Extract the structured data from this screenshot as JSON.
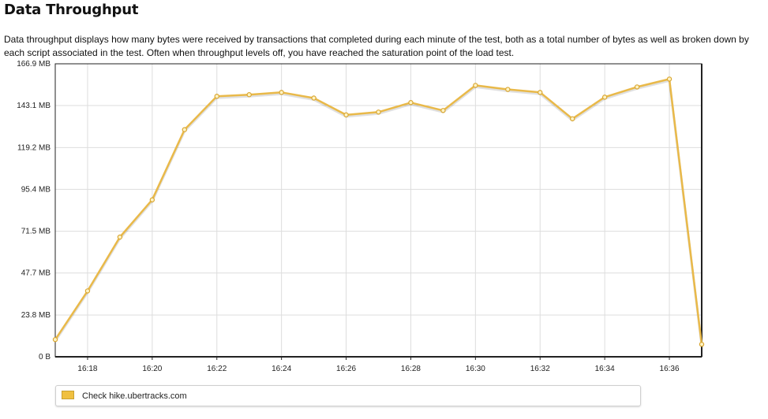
{
  "page": {
    "title": "Data Throughput",
    "description": "Data throughput displays how many bytes were received by transactions that completed during each minute of the test, both as a total number of bytes as well as broken down by each script associated in the test. Often when throughput levels off, you have reached the saturation point of the load test."
  },
  "colors": {
    "series_line": "#e9b949",
    "series_point_fill": "#fff3c4",
    "grid": "#dddddd",
    "axis": "#222222"
  },
  "chart_data": {
    "type": "line",
    "title": "",
    "xlabel": "",
    "ylabel": "",
    "x_unit": "time (HH:MM)",
    "xlim": [
      "16:17",
      "16:37"
    ],
    "ylim": [
      0,
      166.9
    ],
    "y_ticks": [
      0,
      23.8,
      47.7,
      71.5,
      95.4,
      119.2,
      143.1,
      166.9
    ],
    "y_tick_labels": [
      "0 B",
      "23.8 MB",
      "47.7 MB",
      "71.5 MB",
      "95.4 MB",
      "119.2 MB",
      "143.1 MB",
      "166.9 MB"
    ],
    "x_ticks": [
      "16:18",
      "16:20",
      "16:22",
      "16:24",
      "16:26",
      "16:28",
      "16:30",
      "16:32",
      "16:34",
      "16:36"
    ],
    "grid": true,
    "legend_position": "bottom",
    "x": [
      "16:17",
      "16:18",
      "16:19",
      "16:20",
      "16:21",
      "16:22",
      "16:23",
      "16:24",
      "16:25",
      "16:26",
      "16:27",
      "16:28",
      "16:29",
      "16:30",
      "16:31",
      "16:32",
      "16:33",
      "16:34",
      "16:35",
      "16:36",
      "16:37"
    ],
    "series": [
      {
        "name": "Check hike.ubertracks.com",
        "values": [
          9.8,
          37.5,
          68.2,
          89.4,
          129.4,
          148.4,
          149.3,
          150.6,
          147.4,
          137.8,
          139.4,
          144.8,
          140.3,
          154.6,
          152.3,
          150.6,
          135.6,
          147.9,
          153.7,
          158.2,
          7.1
        ]
      }
    ]
  }
}
